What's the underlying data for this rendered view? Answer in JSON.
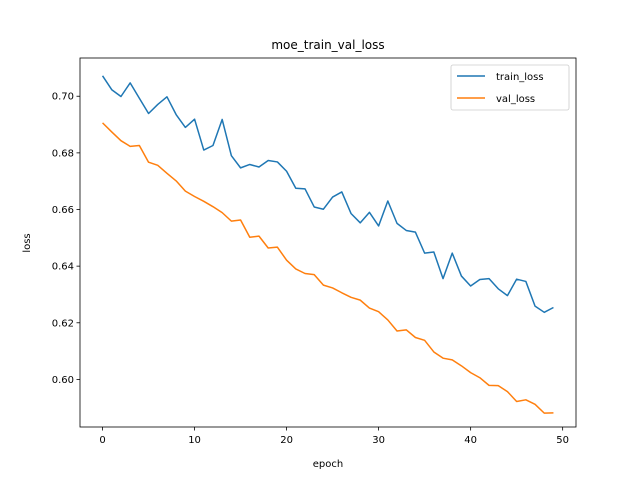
{
  "chart_data": {
    "type": "line",
    "title": "moe_train_val_loss",
    "xlabel": "epoch",
    "ylabel": "loss",
    "xlim": [
      -2.45,
      51.45
    ],
    "ylim": [
      0.5832,
      0.7135
    ],
    "xticks": [
      0,
      10,
      20,
      30,
      40,
      50
    ],
    "yticks": [
      0.6,
      0.62,
      0.64,
      0.66,
      0.68,
      0.7
    ],
    "ytick_labels": [
      "0.60",
      "0.62",
      "0.64",
      "0.66",
      "0.68",
      "0.70"
    ],
    "grid": false,
    "legend_position": "upper right",
    "x": [
      0,
      1,
      2,
      3,
      4,
      5,
      6,
      7,
      8,
      9,
      10,
      11,
      12,
      13,
      14,
      15,
      16,
      17,
      18,
      19,
      20,
      21,
      22,
      23,
      24,
      25,
      26,
      27,
      28,
      29,
      30,
      31,
      32,
      33,
      34,
      35,
      36,
      37,
      38,
      39,
      40,
      41,
      42,
      43,
      44,
      45,
      46,
      47,
      48,
      49
    ],
    "series": [
      {
        "name": "train_loss",
        "color": "#1f77b4",
        "values": [
          0.7072,
          0.7023,
          0.6999,
          0.7047,
          0.6993,
          0.6939,
          0.6971,
          0.6998,
          0.6935,
          0.689,
          0.6919,
          0.681,
          0.6826,
          0.6918,
          0.679,
          0.6747,
          0.6759,
          0.675,
          0.6773,
          0.6768,
          0.6735,
          0.6675,
          0.6673,
          0.6609,
          0.6601,
          0.6644,
          0.6662,
          0.6586,
          0.6553,
          0.659,
          0.6542,
          0.663,
          0.6551,
          0.6526,
          0.652,
          0.6446,
          0.645,
          0.6356,
          0.6446,
          0.6365,
          0.633,
          0.6353,
          0.6356,
          0.632,
          0.6296,
          0.6354,
          0.6346,
          0.6259,
          0.6237,
          0.6254
        ]
      },
      {
        "name": "val_loss",
        "color": "#ff7f0e",
        "values": [
          0.6906,
          0.6874,
          0.6843,
          0.6823,
          0.6826,
          0.6767,
          0.6756,
          0.6728,
          0.6701,
          0.6665,
          0.6646,
          0.6629,
          0.661,
          0.6589,
          0.6559,
          0.6563,
          0.6502,
          0.6506,
          0.6464,
          0.6467,
          0.6421,
          0.639,
          0.6374,
          0.637,
          0.6333,
          0.6323,
          0.6306,
          0.629,
          0.628,
          0.6252,
          0.6239,
          0.621,
          0.6171,
          0.6175,
          0.6148,
          0.6138,
          0.6097,
          0.6075,
          0.6069,
          0.6048,
          0.6024,
          0.6006,
          0.5979,
          0.5978,
          0.5957,
          0.5922,
          0.5928,
          0.5912,
          0.5881,
          0.5882
        ]
      }
    ]
  }
}
